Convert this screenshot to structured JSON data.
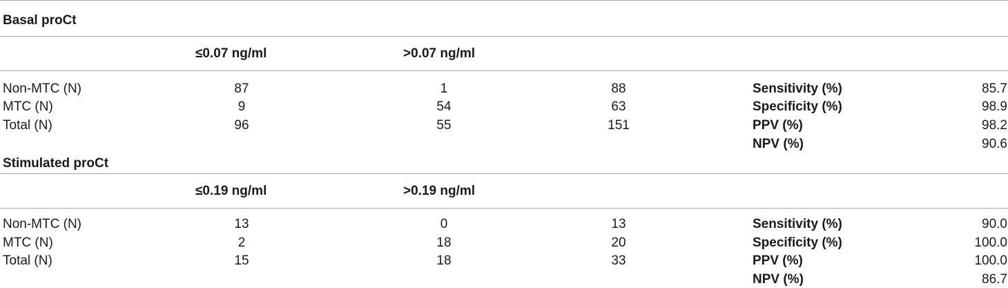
{
  "sections": [
    {
      "title": "Basal proCt",
      "headers": [
        "≤0.07 ng/ml",
        ">0.07 ng/ml"
      ],
      "rows": [
        {
          "label": "Non-MTC (N)",
          "c1": "87",
          "c2": "1",
          "total": "88"
        },
        {
          "label": "MTC (N)",
          "c1": "9",
          "c2": "54",
          "total": "63"
        },
        {
          "label": "Total (N)",
          "c1": "96",
          "c2": "55",
          "total": "151"
        }
      ],
      "metrics": [
        {
          "label": "Sensitivity (%)",
          "value": "85.7"
        },
        {
          "label": "Specificity (%)",
          "value": "98.9"
        },
        {
          "label": "PPV (%)",
          "value": "98.2"
        },
        {
          "label": "NPV (%)",
          "value": "90.6"
        }
      ]
    },
    {
      "title": "Stimulated proCt",
      "headers": [
        "≤0.19 ng/ml",
        ">0.19 ng/ml"
      ],
      "rows": [
        {
          "label": "Non-MTC (N)",
          "c1": "13",
          "c2": "0",
          "total": "13"
        },
        {
          "label": "MTC (N)",
          "c1": "2",
          "c2": "18",
          "total": "20"
        },
        {
          "label": "Total (N)",
          "c1": "15",
          "c2": "18",
          "total": "33"
        }
      ],
      "metrics": [
        {
          "label": "Sensitivity (%)",
          "value": "90.0"
        },
        {
          "label": "Specificity (%)",
          "value": "100.0"
        },
        {
          "label": "PPV (%)",
          "value": "100.0"
        },
        {
          "label": "NPV (%)",
          "value": "86.7"
        }
      ]
    }
  ]
}
